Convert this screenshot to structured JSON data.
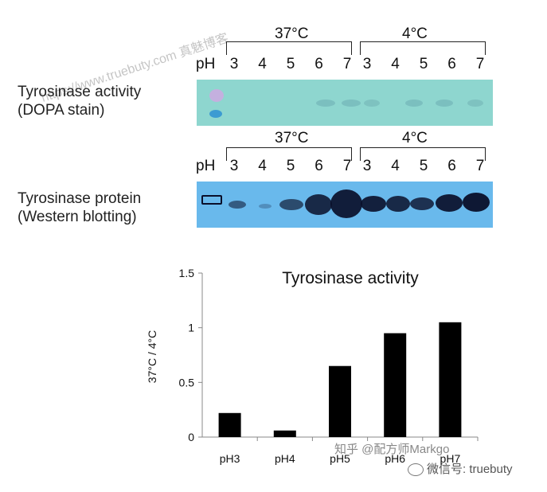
{
  "top_panel": {
    "label_line1": "Tyrosinase activity",
    "label_line2": "(DOPA stain)",
    "temp_a": "37°C",
    "temp_b": "4°C",
    "ph_label": "pH",
    "lanes_a": [
      "3",
      "4",
      "5",
      "6",
      "7"
    ],
    "lanes_b": [
      "3",
      "4",
      "5",
      "6",
      "7"
    ]
  },
  "bottom_panel": {
    "label_line1": "Tyrosinase protein",
    "label_line2": "(Western blotting)",
    "temp_a": "37°C",
    "temp_b": "4°C",
    "ph_label": "pH",
    "lanes_a": [
      "3",
      "4",
      "5",
      "6",
      "7"
    ],
    "lanes_b": [
      "3",
      "4",
      "5",
      "6",
      "7"
    ]
  },
  "watermarks": {
    "site": "https://www.truebuty.com 真魅博客",
    "zhihu": "知乎 @配方师Markgo",
    "wechat": "微信号: truebuty"
  },
  "colors": {
    "gel": "#8ed6cf",
    "blot": "#69b9ec",
    "bar": "#000000",
    "band": "#0a0f2a"
  },
  "chart_data": {
    "type": "bar",
    "title": "Tyrosinase activity",
    "ylabel": "37°C / 4°C",
    "xlabel": "",
    "categories": [
      "pH3",
      "pH4",
      "pH5",
      "pH6",
      "pH7"
    ],
    "values": [
      0.22,
      0.06,
      0.65,
      0.95,
      1.05
    ],
    "ylim": [
      0,
      1.5
    ],
    "yticks": [
      "0",
      "0.5",
      "1",
      "1.5"
    ],
    "grid": false
  }
}
